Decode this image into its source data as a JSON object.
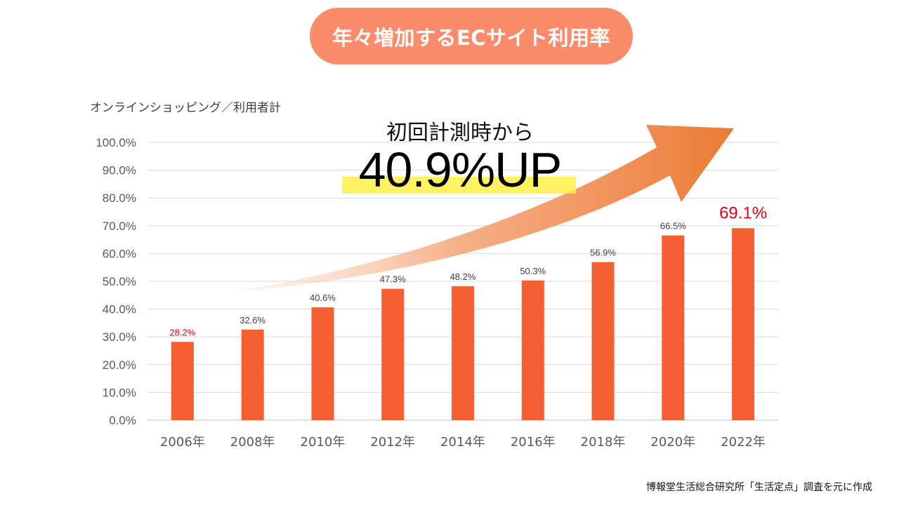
{
  "title": "年々増加するECサイト利用率",
  "callout": {
    "text": "初回計測時から",
    "value": "40.9%UP"
  },
  "source": "博報堂生活総合研究所「生活定点」調査を元に作成",
  "colors": {
    "bar": "#F65F33",
    "title_bg": "#FA8C6C",
    "highlight": "#FFF046",
    "highlight_label": "#E60012",
    "arrow_end": "#EB7A34"
  },
  "chart_data": {
    "type": "bar",
    "ylabel": "オンラインショッピング／利用者計",
    "xlabel": "",
    "categories": [
      "2006年",
      "2008年",
      "2010年",
      "2012年",
      "2014年",
      "2016年",
      "2018年",
      "2020年",
      "2022年"
    ],
    "values": [
      28.2,
      32.6,
      40.6,
      47.3,
      48.2,
      50.3,
      56.9,
      66.5,
      69.1
    ],
    "data_labels": [
      "28.2%",
      "32.6%",
      "40.6%",
      "47.3%",
      "48.2%",
      "50.3%",
      "56.9%",
      "66.5%",
      "69.1%"
    ],
    "highlighted": [
      0,
      8
    ],
    "ylim": [
      0,
      100
    ],
    "yticks": [
      "0.0%",
      "10.0%",
      "20.0%",
      "30.0%",
      "40.0%",
      "50.0%",
      "60.0%",
      "70.0%",
      "80.0%",
      "90.0%",
      "100.0%"
    ],
    "grid": true,
    "legend": "none"
  }
}
